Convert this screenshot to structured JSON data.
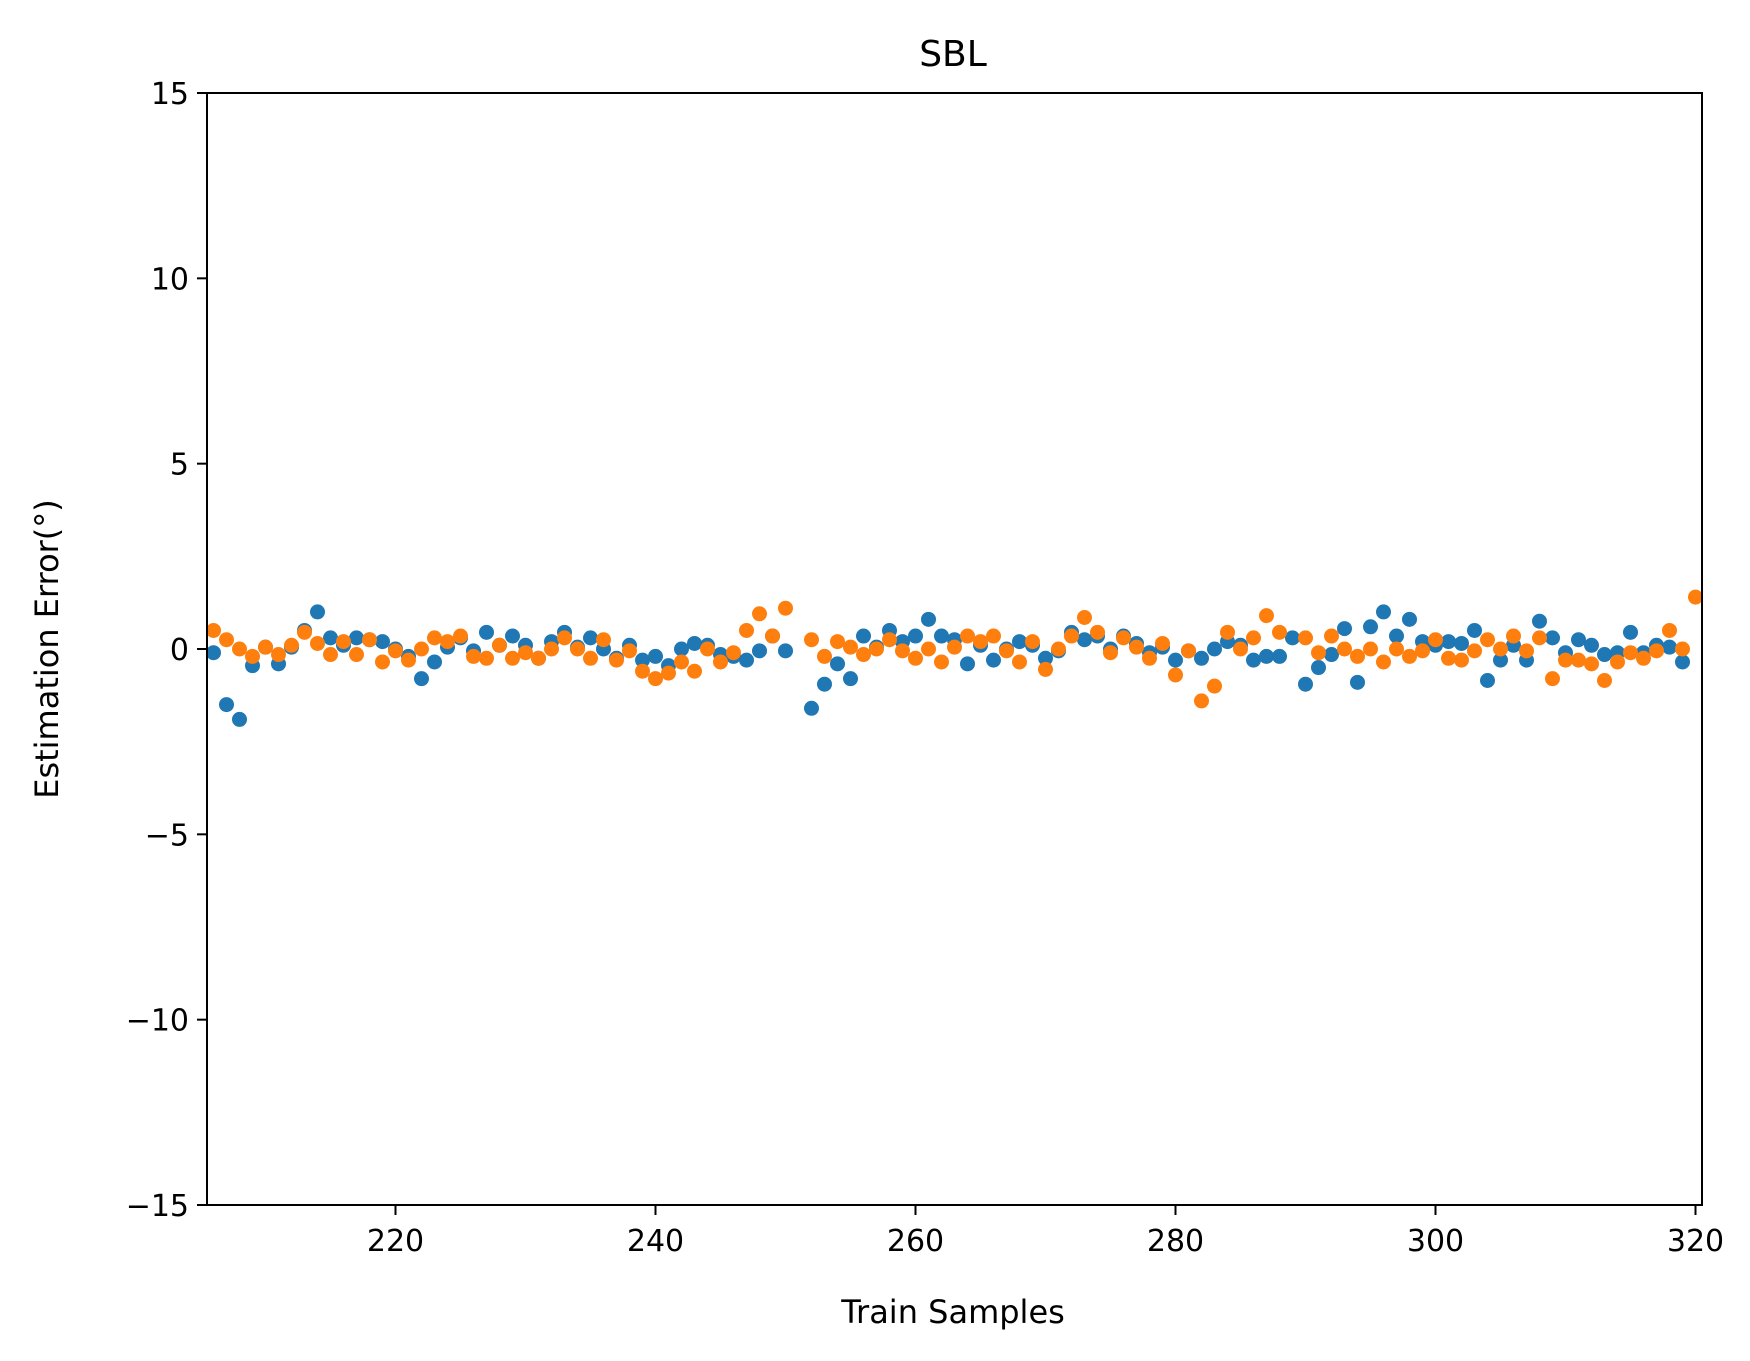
{
  "chart_data": {
    "type": "scatter",
    "title": "SBL",
    "xlabel": "Train Samples",
    "ylabel": "Estimation Error(°)",
    "xlim": [
      205.5,
      320.5
    ],
    "ylim": [
      -15,
      15
    ],
    "xticks": [
      220,
      240,
      260,
      280,
      300,
      320
    ],
    "yticks": [
      15,
      10,
      5,
      0,
      -5,
      -10,
      -15
    ],
    "ytick_labels": [
      "15",
      "10",
      "5",
      "0",
      "−5",
      "−10",
      "−15"
    ],
    "grid": false,
    "legend": "none",
    "x_start": 206,
    "series": [
      {
        "color": "#1f77b4",
        "y": [
          -0.1,
          -1.5,
          -1.9,
          -0.45,
          0.05,
          -0.4,
          0.05,
          0.5,
          1.0,
          0.3,
          0.1,
          0.3,
          0.25,
          0.2,
          0.0,
          -0.2,
          -0.8,
          -0.35,
          0.05,
          0.3,
          -0.05,
          0.45,
          0.1,
          0.35,
          0.1,
          -0.25,
          0.2,
          0.45,
          0.05,
          0.3,
          0.0,
          -0.25,
          0.1,
          -0.3,
          -0.2,
          -0.45,
          0.0,
          0.15,
          0.1,
          -0.15,
          -0.2,
          -0.3,
          -0.05,
          0.35,
          -0.05,
          null,
          -1.6,
          -0.95,
          -0.4,
          -0.8,
          0.35,
          0.05,
          0.5,
          0.2,
          0.35,
          0.8,
          0.35,
          0.25,
          -0.4,
          0.1,
          -0.3,
          0.0,
          0.2,
          0.1,
          -0.25,
          -0.05,
          0.45,
          0.25,
          0.35,
          0.0,
          0.35,
          0.15,
          -0.1,
          0.05,
          -0.3,
          -0.05,
          -0.25,
          0.0,
          0.2,
          0.1,
          -0.3,
          -0.2,
          -0.2,
          0.3,
          -0.95,
          -0.5,
          -0.15,
          0.55,
          -0.9,
          0.6,
          1.0,
          0.35,
          0.8,
          0.2,
          0.1,
          0.2,
          0.15,
          0.5,
          -0.85,
          -0.3,
          0.1,
          -0.3,
          0.75,
          0.3,
          -0.1,
          0.25,
          0.1,
          -0.15,
          -0.1,
          0.45,
          -0.1,
          0.1,
          0.05,
          -0.35
        ]
      },
      {
        "color": "#ff7f0e",
        "y": [
          0.5,
          0.25,
          0.0,
          -0.2,
          0.05,
          -0.15,
          0.1,
          0.45,
          0.15,
          -0.15,
          0.2,
          -0.15,
          0.25,
          -0.35,
          -0.05,
          -0.3,
          0.0,
          0.3,
          0.2,
          0.35,
          -0.2,
          -0.25,
          0.1,
          -0.25,
          -0.1,
          -0.25,
          0.0,
          0.3,
          0.0,
          -0.25,
          0.25,
          -0.3,
          -0.05,
          -0.6,
          -0.8,
          -0.65,
          -0.35,
          -0.6,
          0.0,
          -0.35,
          -0.1,
          0.5,
          0.95,
          0.35,
          1.1,
          null,
          0.25,
          -0.2,
          0.2,
          0.05,
          -0.15,
          0.0,
          0.25,
          -0.05,
          -0.25,
          0.0,
          -0.35,
          0.05,
          0.35,
          0.2,
          0.35,
          -0.05,
          -0.35,
          0.2,
          -0.55,
          0.0,
          0.35,
          0.85,
          0.45,
          -0.1,
          0.3,
          0.05,
          -0.25,
          0.15,
          -0.7,
          -0.05,
          -1.4,
          -1.0,
          0.45,
          0.0,
          0.3,
          0.9,
          0.45,
          null,
          0.3,
          -0.1,
          0.35,
          0.0,
          -0.2,
          0.0,
          -0.35,
          0.0,
          -0.2,
          -0.05,
          0.25,
          -0.25,
          -0.3,
          -0.05,
          0.25,
          0.0,
          0.35,
          -0.05,
          0.3,
          -0.8,
          -0.3,
          -0.3,
          -0.4,
          -0.85,
          -0.35,
          -0.1,
          -0.25,
          -0.05,
          0.5,
          0.0,
          1.4
        ]
      }
    ]
  }
}
